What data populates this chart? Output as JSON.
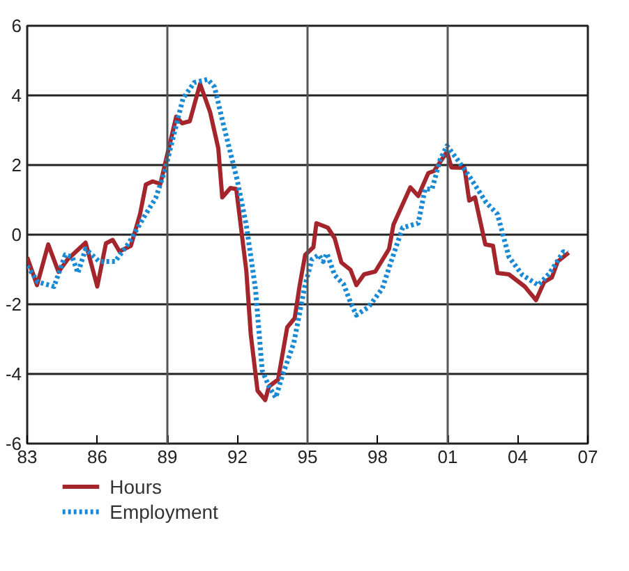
{
  "chart_data": {
    "type": "line",
    "series": [
      {
        "name": "Hours",
        "color": "#a4262c",
        "line_style": "solid",
        "x": [
          1983.0,
          1983.42,
          1983.9,
          1984.34,
          1984.73,
          1985.5,
          1986.0,
          1986.37,
          1986.66,
          1986.95,
          1987.44,
          1987.83,
          1988.08,
          1988.37,
          1988.7,
          1989.38,
          1989.63,
          1989.96,
          1990.4,
          1990.83,
          1991.18,
          1991.35,
          1991.7,
          1991.95,
          1992.38,
          1992.57,
          1992.86,
          1993.19,
          1993.35,
          1993.74,
          1994.13,
          1994.45,
          1994.67,
          1994.9,
          1995.25,
          1995.38,
          1995.87,
          1996.16,
          1996.45,
          1996.84,
          1997.09,
          1997.42,
          1997.9,
          1998.49,
          1998.68,
          1999.4,
          1999.74,
          2000.17,
          2000.42,
          2000.97,
          2001.16,
          2001.72,
          2001.92,
          2002.17,
          2002.61,
          2002.94,
          2003.13,
          2003.62,
          2004.3,
          2004.78,
          2005.13,
          2005.46,
          2005.71,
          2006.18
        ],
        "values": [
          -0.65,
          -1.45,
          -0.28,
          -1.07,
          -0.71,
          -0.23,
          -1.49,
          -0.25,
          -0.15,
          -0.48,
          -0.32,
          0.59,
          1.44,
          1.53,
          1.46,
          3.39,
          3.2,
          3.26,
          4.33,
          3.52,
          2.48,
          1.07,
          1.34,
          1.31,
          -1.04,
          -2.86,
          -4.48,
          -4.75,
          -4.36,
          -4.16,
          -2.66,
          -2.4,
          -1.43,
          -0.58,
          -0.36,
          0.33,
          0.2,
          -0.1,
          -0.8,
          -1.01,
          -1.45,
          -1.14,
          -1.06,
          -0.41,
          0.29,
          1.36,
          1.11,
          1.77,
          1.83,
          2.38,
          1.93,
          1.92,
          0.98,
          1.07,
          -0.28,
          -0.32,
          -1.1,
          -1.14,
          -1.49,
          -1.88,
          -1.36,
          -1.23,
          -0.77,
          -0.52
        ]
      },
      {
        "name": "Employment",
        "color": "#1a8ad4",
        "line_style": "dotted",
        "x": [
          1983.0,
          1983.46,
          1984.15,
          1984.63,
          1984.93,
          1985.17,
          1985.5,
          1986.08,
          1986.76,
          1987.34,
          1988.02,
          1988.5,
          1988.89,
          1989.18,
          1989.67,
          1990.15,
          1990.73,
          1991.02,
          1991.41,
          1991.99,
          1992.38,
          1992.77,
          1993.06,
          1993.35,
          1993.64,
          1993.93,
          1994.41,
          1994.9,
          1995.19,
          1995.48,
          1995.67,
          1995.83,
          1996.16,
          1996.55,
          1996.84,
          1997.09,
          1997.61,
          1998.2,
          1998.58,
          1999.07,
          1999.74,
          2000.03,
          2000.33,
          2000.68,
          2000.97,
          2001.49,
          2001.97,
          2002.65,
          2003.13,
          2003.62,
          2004.2,
          2004.88,
          2005.37,
          2005.95,
          2006.14
        ],
        "values": [
          -0.9,
          -1.36,
          -1.49,
          -0.58,
          -0.64,
          -1.1,
          -0.41,
          -0.77,
          -0.77,
          -0.25,
          0.53,
          1.05,
          1.83,
          2.61,
          3.91,
          4.37,
          4.46,
          4.24,
          3.13,
          1.57,
          0.27,
          -1.55,
          -3.9,
          -4.36,
          -4.68,
          -4.03,
          -3.12,
          -1.43,
          -0.71,
          -0.58,
          -0.77,
          -0.54,
          -1.16,
          -1.43,
          -1.95,
          -2.31,
          -2.08,
          -1.55,
          -0.77,
          0.2,
          0.33,
          1.31,
          1.31,
          2.16,
          2.55,
          2.09,
          1.63,
          0.92,
          0.59,
          -0.64,
          -1.16,
          -1.45,
          -1.1,
          -0.49,
          -0.52
        ]
      }
    ],
    "xlim": [
      1983,
      2007
    ],
    "xticks": [
      {
        "value": 1983,
        "label": "83"
      },
      {
        "value": 1986,
        "label": "86"
      },
      {
        "value": 1989,
        "label": "89"
      },
      {
        "value": 1992,
        "label": "92"
      },
      {
        "value": 1995,
        "label": "95"
      },
      {
        "value": 1998,
        "label": "98"
      },
      {
        "value": 2001,
        "label": "01"
      },
      {
        "value": 2004,
        "label": "04"
      },
      {
        "value": 2007,
        "label": "07"
      }
    ],
    "ylim": [
      -6,
      6
    ],
    "yticks": [
      -6,
      -4,
      -2,
      0,
      2,
      4,
      6
    ],
    "grid": "y",
    "ref_lines": [
      {
        "axis": "x",
        "value": 1989,
        "color": "#555555"
      },
      {
        "axis": "x",
        "value": 1995,
        "color": "#555555"
      },
      {
        "axis": "x",
        "value": 2001,
        "color": "#555555"
      }
    ],
    "legend": "bottom"
  }
}
